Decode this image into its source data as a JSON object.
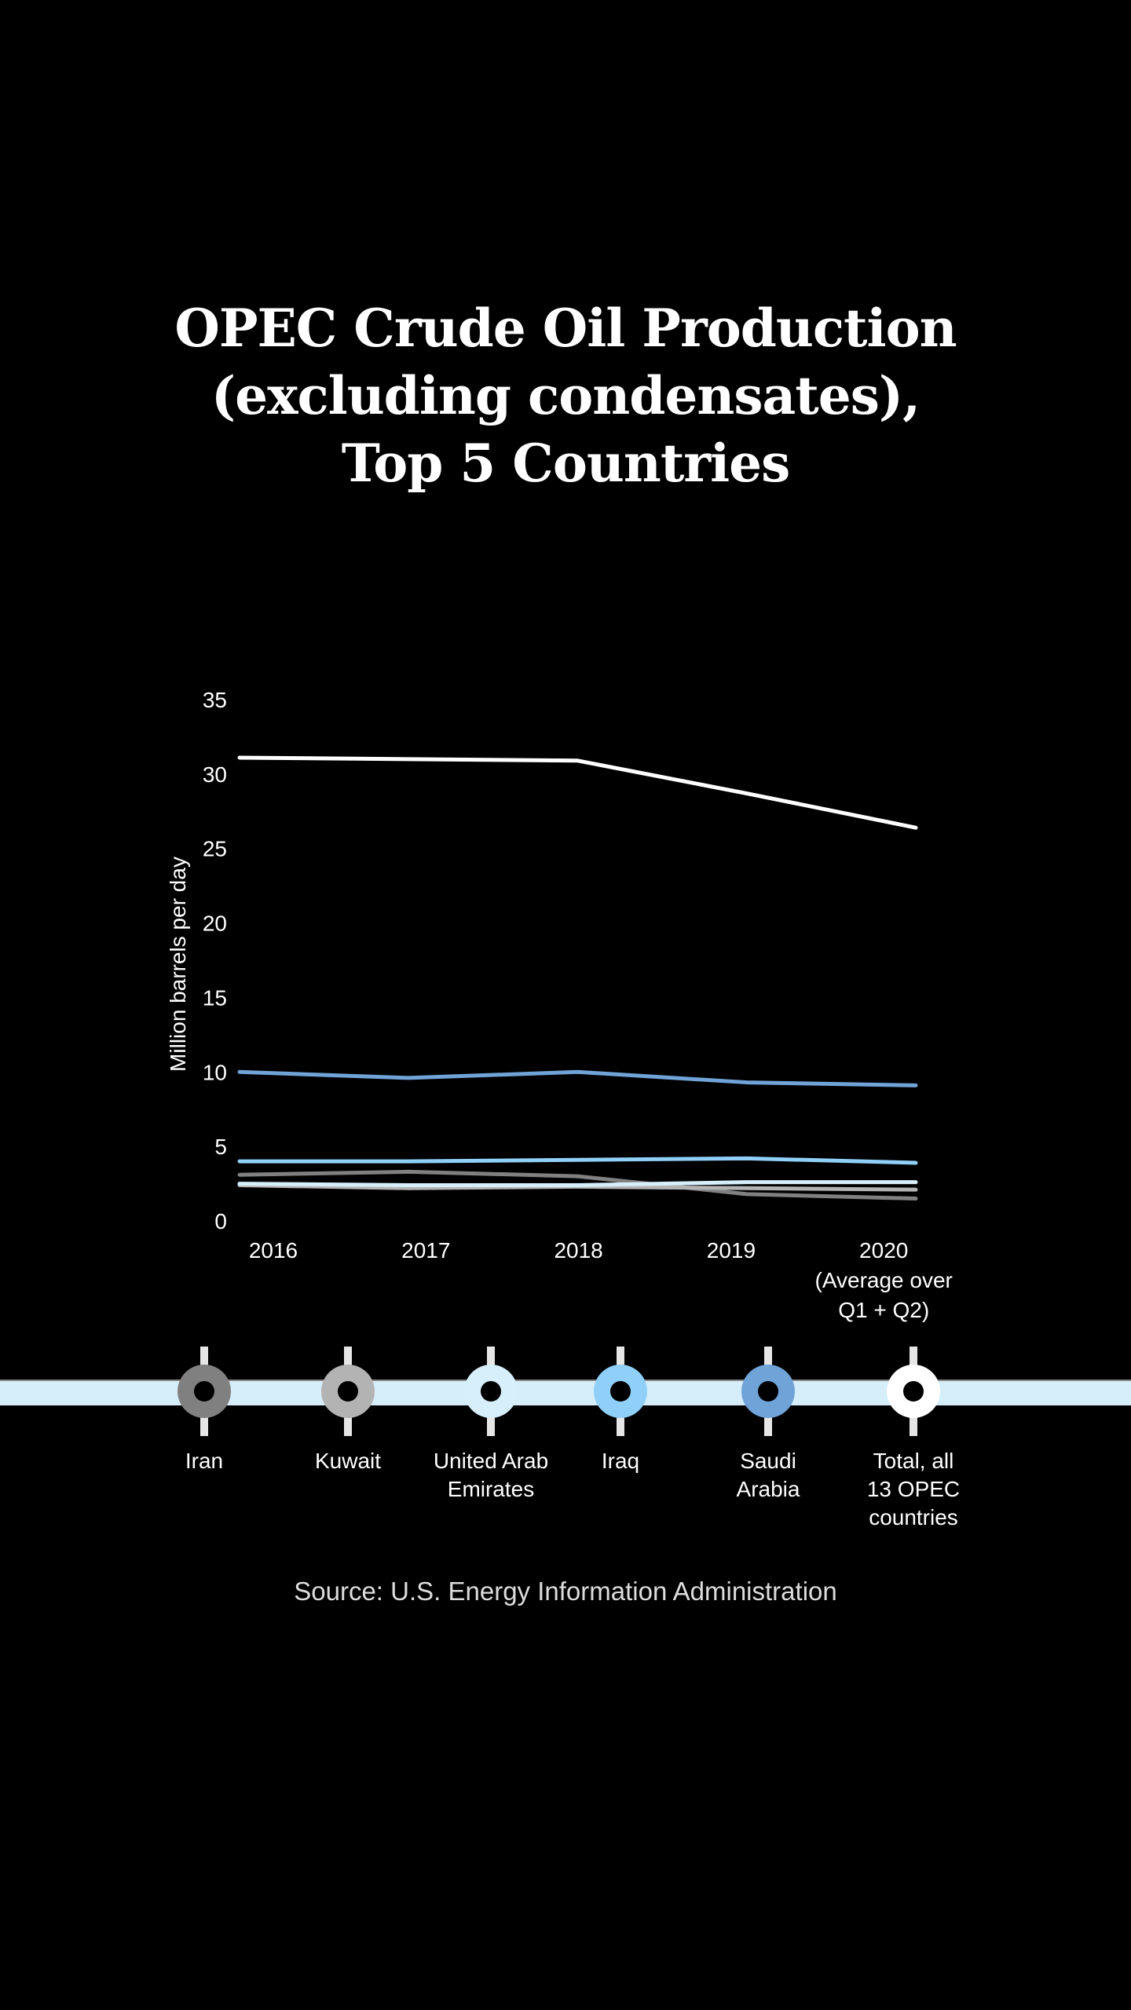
{
  "title_lines": [
    "OPEC Crude Oil Production",
    "(excluding condensates),",
    "Top 5 Countries"
  ],
  "source": "Source: U.S. Energy Information Administration",
  "chart_data": {
    "type": "line",
    "title": "OPEC Crude Oil Production (excluding condensates), Top 5 Countries",
    "ylabel": "Million barrels per day",
    "xlabel": "",
    "ylim": [
      0,
      35
    ],
    "yticks": [
      0,
      5,
      10,
      15,
      20,
      25,
      30,
      35
    ],
    "categories": [
      [
        "2016"
      ],
      [
        "2017"
      ],
      [
        "2018"
      ],
      [
        "2019"
      ],
      [
        "2020",
        "(Average over",
        "Q1 + Q2)"
      ]
    ],
    "grid": false,
    "legend_placement": "bottom",
    "series": [
      {
        "name": "Iran",
        "color": "#808080",
        "values": [
          3.1,
          3.3,
          3.0,
          1.8,
          1.5
        ]
      },
      {
        "name": "Kuwait",
        "color": "#b3b3b3",
        "values": [
          2.4,
          2.2,
          2.3,
          2.2,
          2.1
        ]
      },
      {
        "name": "United Arab Emirates",
        "label_lines": [
          "United Arab",
          "Emirates"
        ],
        "color": "#d6effa",
        "values": [
          2.5,
          2.4,
          2.4,
          2.6,
          2.6
        ]
      },
      {
        "name": "Iraq",
        "color": "#90d0f8",
        "values": [
          4.0,
          4.0,
          4.1,
          4.2,
          3.9
        ]
      },
      {
        "name": "Saudi Arabia",
        "label_lines": [
          "Saudi",
          "Arabia"
        ],
        "color": "#70a3d8",
        "values": [
          10.0,
          9.6,
          10.0,
          9.3,
          9.1
        ]
      },
      {
        "name": "Total, all 13 OPEC countries",
        "label_lines": [
          "Total, all",
          "13 OPEC",
          "countries"
        ],
        "color": "#ffffff",
        "values": [
          31.1,
          31.0,
          30.9,
          28.7,
          26.4
        ]
      }
    ]
  }
}
